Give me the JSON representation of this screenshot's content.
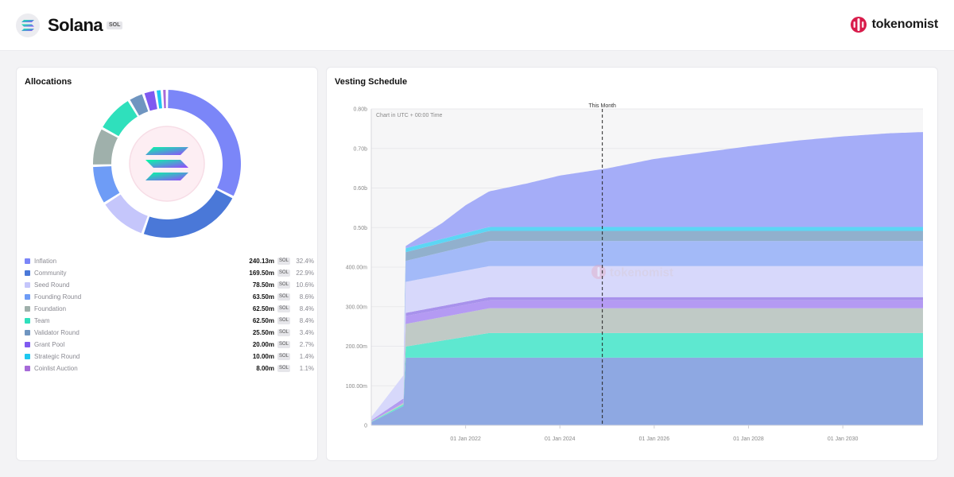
{
  "header": {
    "token_name": "Solana",
    "symbol": "SOL",
    "brand_name": "tokenomist",
    "logo_icon": "solana-logo-icon"
  },
  "allocations": {
    "title": "Allocations",
    "symbol_badge": "SOL",
    "items": [
      {
        "label": "Inflation",
        "amount": "240.13m",
        "percent": "32.4%",
        "value": 32.4,
        "color": "#7b86f8"
      },
      {
        "label": "Community",
        "amount": "169.50m",
        "percent": "22.9%",
        "value": 22.9,
        "color": "#4a78d8"
      },
      {
        "label": "Seed Round",
        "amount": "78.50m",
        "percent": "10.6%",
        "value": 10.6,
        "color": "#c5c6fb"
      },
      {
        "label": "Founding Round",
        "amount": "63.50m",
        "percent": "8.6%",
        "value": 8.6,
        "color": "#6e9cf6"
      },
      {
        "label": "Foundation",
        "amount": "62.50m",
        "percent": "8.4%",
        "value": 8.4,
        "color": "#9fb0ab"
      },
      {
        "label": "Team",
        "amount": "62.50m",
        "percent": "8.4%",
        "value": 8.4,
        "color": "#2fe0bc"
      },
      {
        "label": "Validator Round",
        "amount": "25.50m",
        "percent": "3.4%",
        "value": 3.4,
        "color": "#6f95c0"
      },
      {
        "label": "Grant Pool",
        "amount": "20.00m",
        "percent": "2.7%",
        "value": 2.7,
        "color": "#7f5af0"
      },
      {
        "label": "Strategic Round",
        "amount": "10.00m",
        "percent": "1.4%",
        "value": 1.4,
        "color": "#1ec8f0"
      },
      {
        "label": "Coinlist Auction",
        "amount": "8.00m",
        "percent": "1.1%",
        "value": 1.1,
        "color": "#a66ad8"
      }
    ]
  },
  "vesting": {
    "title": "Vesting Schedule",
    "this_month_label": "This Month",
    "timezone_note": "Chart in UTC + 00:00 Time",
    "watermark": "tokenomist"
  },
  "chart_data": {
    "type": "area",
    "stacked": true,
    "x_start": 2020.0,
    "x_end": 2031.7,
    "this_month_x": 2024.9,
    "y_ticks": [
      "0",
      "100.00m",
      "200.00m",
      "300.00m",
      "400.00m",
      "0.50b",
      "0.60b",
      "0.70b",
      "0.80b"
    ],
    "y_tick_values": [
      0,
      100,
      200,
      300,
      400,
      500,
      600,
      700,
      800
    ],
    "ylim": [
      0,
      800
    ],
    "x_ticks": [
      {
        "label": "01 Jan 2022",
        "x": 2022.0
      },
      {
        "label": "01 Jan 2024",
        "x": 2024.0
      },
      {
        "label": "01 Jan 2026",
        "x": 2026.0
      },
      {
        "label": "01 Jan 2028",
        "x": 2028.0
      },
      {
        "label": "01 Jan 2030",
        "x": 2030.0
      }
    ],
    "series": [
      {
        "color": "#8ea8e2",
        "points": [
          [
            2020.0,
            8
          ],
          [
            2020.7,
            50
          ],
          [
            2020.72,
            171
          ],
          [
            2031.7,
            171
          ]
        ]
      },
      {
        "color": "#5ee8d0",
        "points": [
          [
            2020.0,
            1
          ],
          [
            2020.7,
            4
          ],
          [
            2020.72,
            28
          ],
          [
            2022.5,
            62.5
          ],
          [
            2031.7,
            62.5
          ]
        ]
      },
      {
        "color": "#c0cac6",
        "points": [
          [
            2020.0,
            1
          ],
          [
            2020.7,
            4
          ],
          [
            2020.72,
            57
          ],
          [
            2022.5,
            62.5
          ],
          [
            2031.7,
            62.5
          ]
        ]
      },
      {
        "color": "#b49af3",
        "points": [
          [
            2020.0,
            2
          ],
          [
            2020.7,
            8
          ],
          [
            2020.72,
            20
          ],
          [
            2031.7,
            20
          ]
        ]
      },
      {
        "color": "#a892ec",
        "points": [
          [
            2020.0,
            1
          ],
          [
            2020.7,
            3
          ],
          [
            2020.72,
            8
          ],
          [
            2031.7,
            8
          ]
        ]
      },
      {
        "color": "#d7d8fb",
        "points": [
          [
            2020.0,
            8
          ],
          [
            2020.7,
            60
          ],
          [
            2020.72,
            78.5
          ],
          [
            2031.7,
            78.5
          ]
        ]
      },
      {
        "color": "#a3baf8",
        "points": [
          [
            2020.0,
            0
          ],
          [
            2020.7,
            0
          ],
          [
            2020.72,
            53
          ],
          [
            2022.5,
            63.5
          ],
          [
            2031.7,
            63.5
          ]
        ]
      },
      {
        "color": "#91b0cd",
        "points": [
          [
            2020.0,
            0
          ],
          [
            2020.7,
            0
          ],
          [
            2020.72,
            22
          ],
          [
            2022.5,
            25.5
          ],
          [
            2031.7,
            25.5
          ]
        ]
      },
      {
        "color": "#5cd6f4",
        "points": [
          [
            2020.0,
            0
          ],
          [
            2020.7,
            0
          ],
          [
            2020.72,
            10
          ],
          [
            2031.7,
            10
          ]
        ]
      },
      {
        "color": "#a5adf8",
        "points": [
          [
            2020.0,
            0
          ],
          [
            2020.7,
            0
          ],
          [
            2020.72,
            5
          ],
          [
            2021.5,
            40
          ],
          [
            2022.0,
            70
          ],
          [
            2022.5,
            90
          ],
          [
            2023.3,
            110
          ],
          [
            2024.0,
            130
          ],
          [
            2025.0,
            148
          ],
          [
            2026.0,
            172
          ],
          [
            2027.0,
            188
          ],
          [
            2028.0,
            204
          ],
          [
            2029.0,
            218
          ],
          [
            2030.0,
            229
          ],
          [
            2031.0,
            237
          ],
          [
            2031.7,
            240
          ]
        ]
      }
    ]
  }
}
